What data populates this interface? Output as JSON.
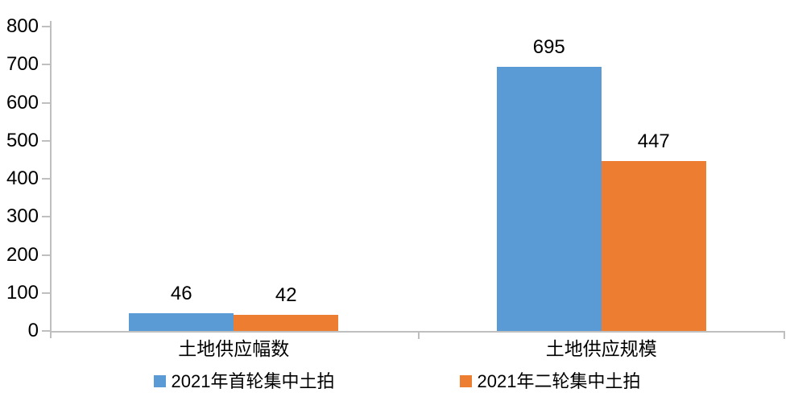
{
  "colors": {
    "series1": "#5B9BD5",
    "series2": "#ED7D31",
    "axis": "#BFBFBF",
    "text": "#000000",
    "background": "#ffffff"
  },
  "chart_data": {
    "type": "bar",
    "title": "",
    "xlabel": "",
    "ylabel": "",
    "categories": [
      "土地供应幅数",
      "土地供应规模"
    ],
    "series": [
      {
        "name": "2021年首轮集中土拍",
        "color": "#5B9BD5",
        "values": [
          46,
          695
        ]
      },
      {
        "name": "2021年二轮集中土拍",
        "color": "#ED7D31",
        "values": [
          42,
          447
        ]
      }
    ],
    "ylim": [
      0,
      800
    ],
    "yticks": [
      0,
      100,
      200,
      300,
      400,
      500,
      600,
      700,
      800
    ],
    "grid": false,
    "data_labels": true,
    "legend_position": "bottom"
  }
}
